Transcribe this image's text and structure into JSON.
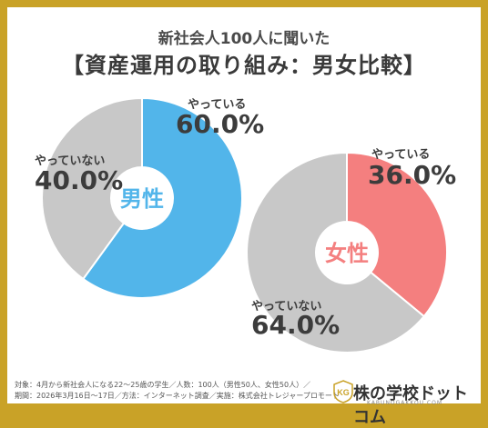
{
  "header": {
    "subtitle": "新社会人100人に聞いた",
    "title": "【資産運用の取り組み：男女比較】"
  },
  "chart_data": [
    {
      "type": "pie",
      "name": "男性",
      "slices": [
        {
          "label": "やっている",
          "value": 60.0,
          "display": "60.0%",
          "color": "#52b5ea"
        },
        {
          "label": "やっていない",
          "value": 40.0,
          "display": "40.0%",
          "color": "#c8c8c8"
        }
      ],
      "center_color": "#52b5ea"
    },
    {
      "type": "pie",
      "name": "女性",
      "slices": [
        {
          "label": "やっている",
          "value": 36.0,
          "display": "36.0%",
          "color": "#f47f7f"
        },
        {
          "label": "やっていない",
          "value": 64.0,
          "display": "64.0%",
          "color": "#c8c8c8"
        }
      ],
      "center_color": "#f47f7f"
    }
  ],
  "footnote": {
    "line1": "対象：4月から新社会人になる22〜25歳の学生／人数：100人（男性50人、女性50人）／",
    "line2": "期間：2026年3月16日〜17日／方法：インターネット調査／実施：株式会社トレジャープロモート"
  },
  "logo": {
    "text": "株の学校ドットコム",
    "sub": "KABUNOGAKKOU.COM",
    "mark": "KG"
  },
  "colors": {
    "border": "#c9a227"
  }
}
